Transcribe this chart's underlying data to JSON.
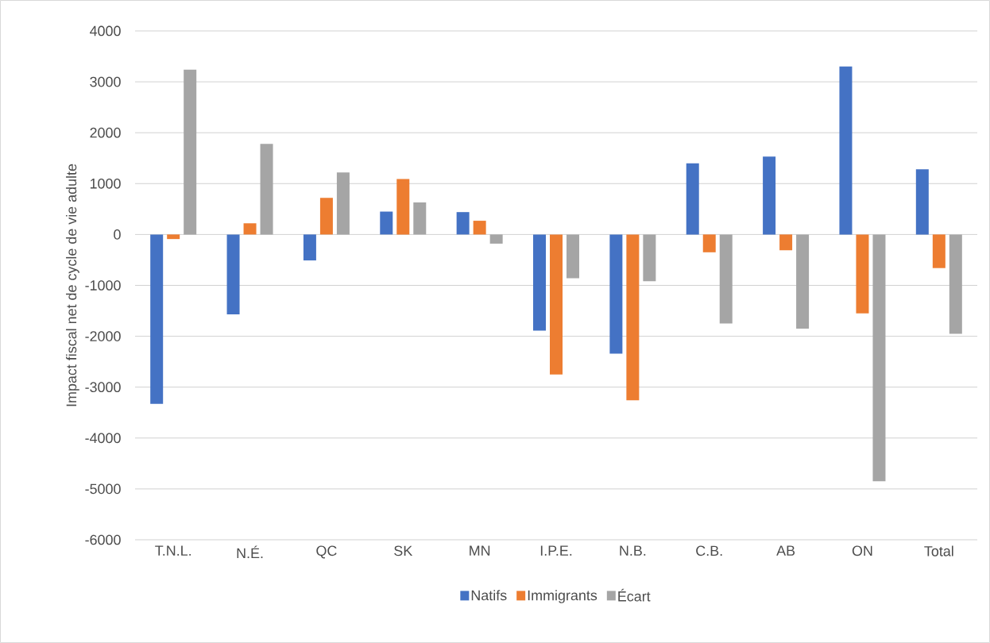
{
  "chart_data": {
    "type": "bar",
    "ylabel": "Impact fiscal net de cycle de vie adulte",
    "categories": [
      "T.N.L.",
      "N.É.",
      "QC",
      "SK",
      "MN",
      "I.P.E.",
      "N.B.",
      "C.B.",
      "AB",
      "ON",
      "Total"
    ],
    "series": [
      {
        "name": "Natifs",
        "color": "#4472c4",
        "values": [
          -3330,
          -1570,
          -510,
          450,
          440,
          -1890,
          -2340,
          1400,
          1530,
          3300,
          1280
        ]
      },
      {
        "name": "Immigrants",
        "color": "#ed7d31",
        "values": [
          -90,
          220,
          720,
          1090,
          270,
          -2750,
          -3260,
          -350,
          -310,
          -1550,
          -660
        ]
      },
      {
        "name": "Écart",
        "color": "#a5a5a5",
        "values": [
          3240,
          1780,
          1220,
          630,
          -180,
          -860,
          -920,
          -1750,
          -1850,
          -4850,
          -1950
        ]
      }
    ],
    "ylim": [
      -6000,
      4000
    ],
    "yticks": [
      -6000,
      -5000,
      -4000,
      -3000,
      -2000,
      -1000,
      0,
      1000,
      2000,
      3000,
      4000
    ],
    "grid": "y",
    "legend": "bottom"
  }
}
